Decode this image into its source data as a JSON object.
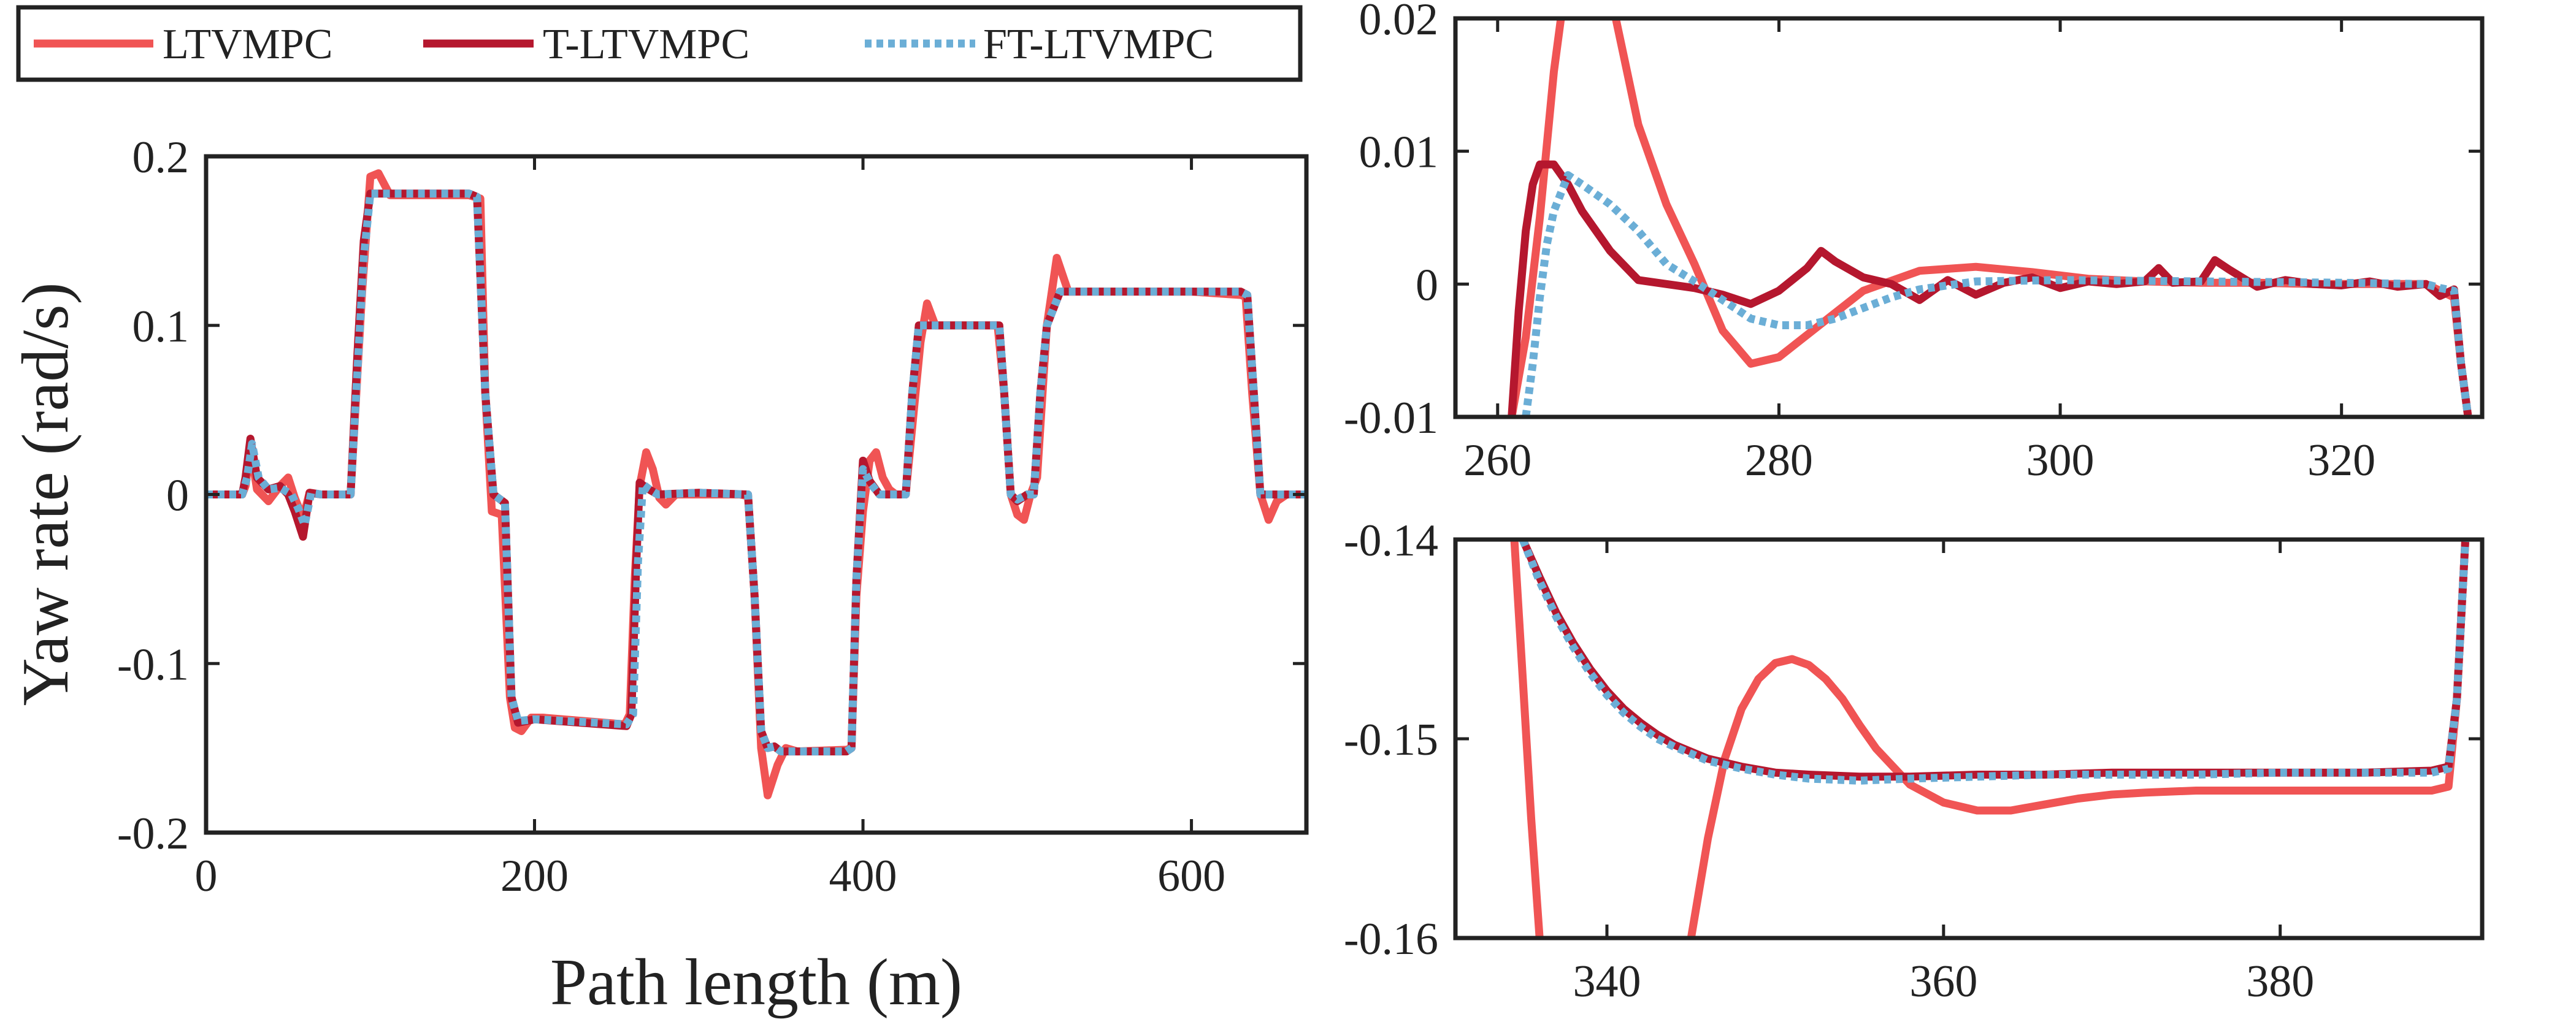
{
  "legend": {
    "entries": [
      {
        "label": "LTVMPC",
        "color": "#f05454",
        "dash": "solid"
      },
      {
        "label": "T-LTVMPC",
        "color": "#b5172e",
        "dash": "solid"
      },
      {
        "label": "FT-LTVMPC",
        "color": "#6baed6",
        "dash": "dotted"
      }
    ],
    "placement": "top-left"
  },
  "chart_data": [
    {
      "type": "line",
      "panel": "main",
      "xlabel": "Path length (m)",
      "ylabel": "Yaw rate (rad/s)",
      "xlim": [
        0,
        670
      ],
      "ylim": [
        -0.2,
        0.2
      ],
      "x_ticks": [
        0,
        200,
        400,
        600
      ],
      "y_ticks": [
        -0.2,
        -0.1,
        0,
        0.1,
        0.2
      ],
      "x_tick_labels": [
        "0",
        "200",
        "400",
        "600"
      ],
      "y_tick_labels": [
        "-0.2",
        "-0.1",
        "0",
        "0.1",
        "0.2"
      ],
      "grid": false,
      "series": [
        {
          "name": "LTVMPC",
          "color": "#f05454",
          "dash": "solid",
          "x": [
            0,
            22,
            24,
            27,
            31,
            38,
            45,
            50,
            54,
            59,
            63,
            70,
            88,
            95,
            100,
            105,
            112,
            120,
            160,
            167,
            170,
            174,
            180,
            185,
            188,
            192,
            198,
            205,
            255,
            258,
            261,
            264,
            268,
            272,
            276,
            280,
            286,
            300,
            325,
            330,
            334,
            338,
            342,
            348,
            353,
            360,
            390,
            393,
            396,
            400,
            404,
            408,
            412,
            416,
            420,
            426,
            432,
            435,
            439,
            444,
            450,
            478,
            482,
            486,
            490,
            494,
            498,
            502,
            506,
            512,
            518,
            525,
            560,
            600,
            630,
            633,
            637,
            642,
            647,
            652,
            658,
            670
          ],
          "y": [
            0,
            0,
            0.005,
            0.028,
            0.003,
            -0.004,
            0.005,
            0.01,
            -0.002,
            -0.014,
            0.001,
            0,
            0,
            0.12,
            0.188,
            0.19,
            0.177,
            0.177,
            0.177,
            0.175,
            0.06,
            -0.01,
            -0.012,
            -0.12,
            -0.138,
            -0.14,
            -0.132,
            -0.132,
            -0.136,
            -0.13,
            -0.05,
            0.005,
            0.025,
            0.015,
            -0.002,
            -0.006,
            0,
            0,
            0,
            -0.001,
            -0.06,
            -0.15,
            -0.178,
            -0.16,
            -0.15,
            -0.152,
            -0.151,
            -0.15,
            -0.06,
            -0.01,
            0.02,
            0.025,
            0.01,
            0.003,
            0,
            0,
            0.06,
            0.09,
            0.113,
            0.1,
            0.1,
            0.1,
            0.1,
            0.06,
            0,
            -0.012,
            -0.015,
            0,
            0.01,
            0.1,
            0.14,
            0.12,
            0.12,
            0.12,
            0.118,
            0.117,
            0.06,
            0,
            -0.015,
            -0.004,
            0,
            0
          ]
        },
        {
          "name": "T-LTVMPC",
          "color": "#b5172e",
          "dash": "solid",
          "x": [
            0,
            22,
            24,
            27,
            31,
            38,
            45,
            50,
            54,
            59,
            63,
            70,
            88,
            92,
            96,
            100,
            104,
            112,
            160,
            165,
            170,
            175,
            182,
            186,
            190,
            200,
            256,
            259,
            262,
            264,
            268,
            275,
            300,
            330,
            334,
            338,
            342,
            346,
            350,
            390,
            393,
            396,
            400,
            404,
            410,
            420,
            426,
            430,
            434,
            440,
            480,
            483,
            486,
            490,
            494,
            500,
            504,
            508,
            512,
            520,
            560,
            600,
            630,
            634,
            638,
            642,
            648,
            670
          ],
          "y": [
            0,
            0,
            0.01,
            0.033,
            0.01,
            0.003,
            0.005,
            0,
            -0.01,
            -0.025,
            0.001,
            0,
            0,
            0.08,
            0.15,
            0.178,
            0.178,
            0.178,
            0.178,
            0.176,
            0.06,
            0,
            -0.005,
            -0.12,
            -0.135,
            -0.133,
            -0.137,
            -0.13,
            -0.04,
            0.007,
            0.004,
            0,
            0.001,
            0,
            -0.06,
            -0.14,
            -0.15,
            -0.149,
            -0.152,
            -0.152,
            -0.15,
            -0.05,
            0.02,
            0.008,
            0,
            0,
            0,
            0.06,
            0.1,
            0.1,
            0.1,
            0.1,
            0.06,
            0,
            -0.004,
            0,
            0,
            0.06,
            0.1,
            0.12,
            0.12,
            0.12,
            0.12,
            0.118,
            0.06,
            0,
            0,
            0
          ]
        },
        {
          "name": "FT-LTVMPC",
          "color": "#6baed6",
          "dash": "dotted",
          "x": [
            0,
            22,
            25,
            28,
            32,
            38,
            45,
            52,
            56,
            60,
            64,
            70,
            88,
            92,
            96,
            100,
            105,
            112,
            160,
            165,
            170,
            175,
            182,
            186,
            190,
            200,
            256,
            260,
            263,
            266,
            270,
            275,
            300,
            330,
            334,
            338,
            342,
            346,
            350,
            390,
            393,
            396,
            400,
            405,
            410,
            420,
            426,
            430,
            434,
            440,
            480,
            483,
            486,
            490,
            494,
            500,
            504,
            508,
            512,
            520,
            560,
            600,
            630,
            634,
            638,
            642,
            648,
            670
          ],
          "y": [
            0,
            0,
            0.01,
            0.03,
            0.01,
            0.003,
            0.004,
            0,
            -0.008,
            -0.018,
            0.001,
            0,
            0,
            0.07,
            0.14,
            0.178,
            0.178,
            0.178,
            0.178,
            0.176,
            0.06,
            0,
            -0.005,
            -0.12,
            -0.134,
            -0.133,
            -0.136,
            -0.13,
            -0.04,
            0.006,
            0.003,
            0,
            0.001,
            0,
            -0.06,
            -0.14,
            -0.15,
            -0.149,
            -0.152,
            -0.152,
            -0.15,
            -0.05,
            0.015,
            0.006,
            0,
            0,
            0,
            0.06,
            0.1,
            0.1,
            0.1,
            0.1,
            0.06,
            0,
            -0.003,
            0,
            0,
            0.06,
            0.1,
            0.12,
            0.12,
            0.12,
            0.12,
            0.118,
            0.06,
            0,
            0,
            0
          ]
        }
      ]
    },
    {
      "type": "line",
      "panel": "zoom-top",
      "xlim": [
        257,
        330
      ],
      "ylim": [
        -0.01,
        0.02
      ],
      "x_ticks": [
        260,
        280,
        300,
        320
      ],
      "y_ticks": [
        -0.01,
        0,
        0.01,
        0.02
      ],
      "x_tick_labels": [
        "260",
        "280",
        "300",
        "320"
      ],
      "y_tick_labels": [
        "-0.01",
        "0",
        "0.01",
        "0.02"
      ],
      "grid": false,
      "series": [
        {
          "name": "LTVMPC",
          "color": "#f05454",
          "dash": "solid",
          "x": [
            261,
            262,
            263,
            264,
            265,
            266,
            267,
            268,
            269,
            270,
            272,
            274,
            276,
            278,
            280,
            283,
            286,
            290,
            294,
            298,
            302,
            306,
            310,
            314,
            318,
            322,
            326,
            328,
            328.5,
            329
          ],
          "y": [
            -0.01,
            -0.004,
            0.005,
            0.016,
            0.024,
            0.028,
            0.027,
            0.022,
            0.017,
            0.012,
            0.006,
            0.0015,
            -0.0035,
            -0.006,
            -0.0055,
            -0.003,
            -0.0005,
            0.001,
            0.0013,
            0.0009,
            0.0004,
            0.0002,
            0.0001,
            0.0001,
            0,
            0,
            0,
            -0.001,
            -0.006,
            -0.01
          ]
        },
        {
          "name": "T-LTVMPC",
          "color": "#b5172e",
          "dash": "solid",
          "x": [
            261,
            261.5,
            262,
            262.5,
            263,
            264,
            265,
            266,
            268,
            270,
            272,
            274,
            276,
            278,
            280,
            282,
            283,
            284,
            286,
            288,
            290,
            292,
            294,
            296,
            298,
            300,
            302,
            304,
            306,
            307,
            308,
            310,
            311,
            312,
            314,
            316,
            318,
            320,
            322,
            324,
            326,
            327,
            328,
            328.5,
            329
          ],
          "y": [
            -0.01,
            -0.002,
            0.004,
            0.0075,
            0.009,
            0.009,
            0.0075,
            0.0055,
            0.0025,
            0.0003,
            0,
            -0.0003,
            -0.0008,
            -0.0015,
            -0.0005,
            0.0012,
            0.0025,
            0.0017,
            0.0005,
            0,
            -0.0012,
            0.0003,
            -0.0008,
            0.0001,
            0.0005,
            -0.0003,
            0.0002,
            0,
            0.0002,
            0.0012,
            0.0001,
            0.0002,
            0.0018,
            0.0011,
            -0.0002,
            0.0003,
            0,
            -0.0001,
            0.0002,
            -0.0002,
            0,
            -0.0009,
            -0.0004,
            -0.006,
            -0.01
          ]
        },
        {
          "name": "FT-LTVMPC",
          "color": "#6baed6",
          "dash": "dotted",
          "x": [
            262,
            262.5,
            263,
            263.5,
            264,
            265,
            266,
            268,
            270,
            272,
            274,
            276,
            278,
            280,
            282,
            284,
            286,
            288,
            290,
            294,
            300,
            310,
            320,
            326,
            327,
            328,
            328.5,
            329
          ],
          "y": [
            -0.01,
            -0.006,
            -0.001,
            0.003,
            0.0055,
            0.0082,
            0.0075,
            0.006,
            0.004,
            0.0015,
            0.0002,
            -0.0012,
            -0.0026,
            -0.0031,
            -0.0031,
            -0.0026,
            -0.0018,
            -0.001,
            -0.0004,
            0.0002,
            0.0003,
            0.0002,
            0.0001,
            0,
            -0.0003,
            -0.0005,
            -0.006,
            -0.01
          ]
        }
      ]
    },
    {
      "type": "line",
      "panel": "zoom-bottom",
      "xlim": [
        331,
        392
      ],
      "ylim": [
        -0.16,
        -0.14
      ],
      "x_ticks": [
        340,
        360,
        380
      ],
      "y_ticks": [
        -0.16,
        -0.15,
        -0.14
      ],
      "x_tick_labels": [
        "340",
        "360",
        "380"
      ],
      "y_tick_labels": [
        "-0.16",
        "-0.15",
        "-0.14"
      ],
      "grid": false,
      "series": [
        {
          "name": "LTVMPC",
          "color": "#f05454",
          "dash": "solid",
          "x": [
            334.5,
            335,
            335.5,
            336,
            336.5,
            345,
            346,
            347,
            348,
            349,
            350,
            351,
            352,
            353,
            354,
            355,
            356,
            358,
            360,
            362,
            364,
            366,
            368,
            370,
            372,
            375,
            380,
            385,
            389,
            390,
            390.5,
            391
          ],
          "y": [
            -0.14,
            -0.147,
            -0.154,
            -0.16,
            -0.165,
            -0.16,
            -0.155,
            -0.151,
            -0.1485,
            -0.147,
            -0.1462,
            -0.146,
            -0.1463,
            -0.147,
            -0.148,
            -0.1493,
            -0.1505,
            -0.1523,
            -0.1532,
            -0.1536,
            -0.1536,
            -0.1533,
            -0.153,
            -0.1528,
            -0.1527,
            -0.1526,
            -0.1526,
            -0.1526,
            -0.1526,
            -0.1524,
            -0.148,
            -0.14
          ]
        },
        {
          "name": "T-LTVMPC",
          "color": "#b5172e",
          "dash": "solid",
          "x": [
            335,
            336,
            337,
            338,
            339,
            340,
            341,
            342,
            343,
            344,
            346,
            348,
            350,
            352,
            355,
            358,
            362,
            366,
            370,
            375,
            380,
            385,
            389,
            390,
            390.5,
            391
          ],
          "y": [
            -0.14,
            -0.1419,
            -0.1437,
            -0.1452,
            -0.1465,
            -0.1476,
            -0.1485,
            -0.1492,
            -0.1498,
            -0.1503,
            -0.151,
            -0.1514,
            -0.1517,
            -0.1518,
            -0.1519,
            -0.1519,
            -0.1518,
            -0.1518,
            -0.1517,
            -0.1517,
            -0.1517,
            -0.1517,
            -0.1516,
            -0.1514,
            -0.148,
            -0.14
          ]
        },
        {
          "name": "FT-LTVMPC",
          "color": "#6baed6",
          "dash": "dotted",
          "x": [
            335,
            336,
            337,
            338,
            339,
            340,
            341,
            342,
            343,
            344,
            346,
            348,
            350,
            352,
            355,
            358,
            362,
            366,
            370,
            375,
            380,
            385,
            389,
            390,
            390.5,
            391
          ],
          "y": [
            -0.14,
            -0.1421,
            -0.1439,
            -0.1454,
            -0.1467,
            -0.1478,
            -0.1487,
            -0.1494,
            -0.15,
            -0.1504,
            -0.1511,
            -0.1515,
            -0.1518,
            -0.152,
            -0.1521,
            -0.152,
            -0.1519,
            -0.1518,
            -0.1518,
            -0.1518,
            -0.1517,
            -0.1517,
            -0.1517,
            -0.1515,
            -0.148,
            -0.14
          ]
        }
      ]
    }
  ]
}
